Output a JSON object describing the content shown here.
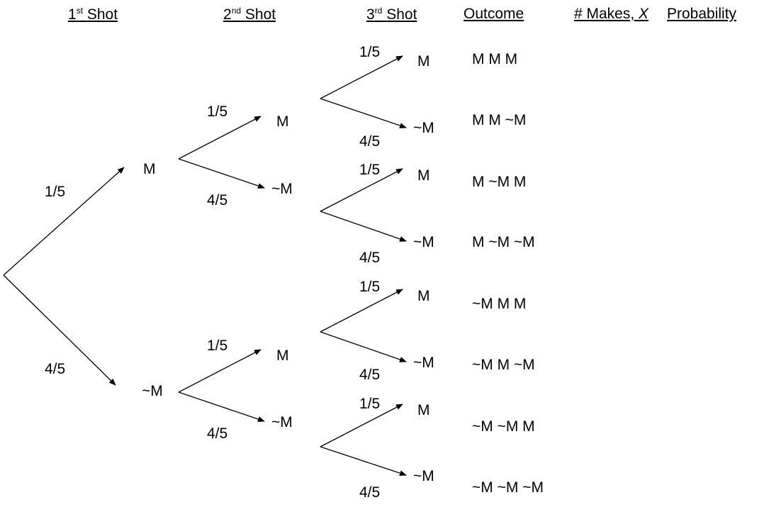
{
  "headers": {
    "shot1": {
      "number": "1",
      "suffix": "st",
      "word": "Shot"
    },
    "shot2": {
      "number": "2",
      "suffix": "nd",
      "word": "Shot"
    },
    "shot3": {
      "number": "3",
      "suffix": "rd",
      "word": "Shot"
    },
    "outcome": "Outcome",
    "makes_prefix": "# Makes, ",
    "makes_var": "X",
    "probability": "Probability"
  },
  "labels": {
    "make": "M",
    "miss": "~M",
    "p_make": "1/5",
    "p_miss": "4/5"
  },
  "outcomes": [
    "M M M",
    "M M ~M",
    "M ~M M",
    "M ~M ~M",
    "~M M M",
    "~M M ~M",
    "~M ~M M",
    "~M ~M ~M"
  ]
}
